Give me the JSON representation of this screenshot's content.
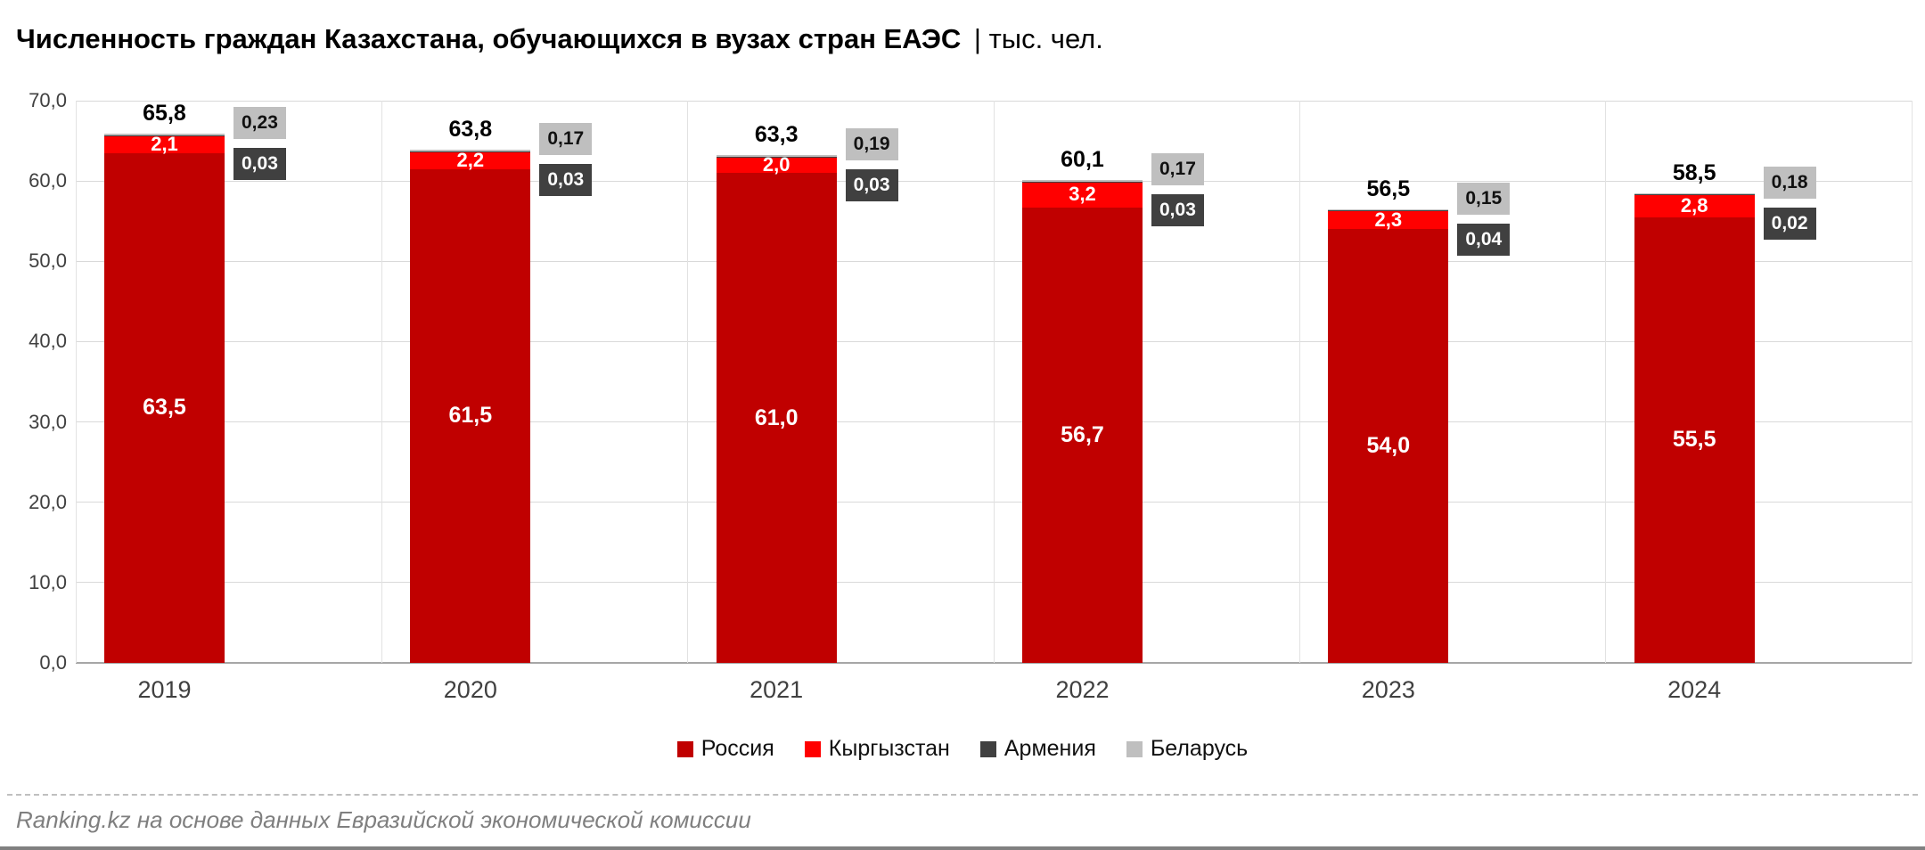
{
  "header": {
    "title": "Численность граждан Казахстана, обучающихся в вузах стран ЕАЭС",
    "title_suffix": "| тыс. чел."
  },
  "footer": {
    "credit": "Ranking.kz на основе данных Евразийской экономической комиссии"
  },
  "chart_data": {
    "type": "bar",
    "stacked": true,
    "title": "Численность граждан Казахстана, обучающихся в вузах стран ЕАЭС",
    "units": "тыс. чел.",
    "categories": [
      "2019",
      "2020",
      "2021",
      "2022",
      "2023",
      "2024"
    ],
    "series": [
      {
        "name": "Россия",
        "color": "#c00000",
        "values": [
          63.5,
          61.5,
          61.0,
          56.7,
          54.0,
          55.5
        ],
        "labels": [
          "63,5",
          "61,5",
          "61,0",
          "56,7",
          "54,0",
          "55,5"
        ]
      },
      {
        "name": "Кыргызстан",
        "color": "#ff0000",
        "values": [
          2.1,
          2.2,
          2.0,
          3.2,
          2.3,
          2.8
        ],
        "labels": [
          "2,1",
          "2,2",
          "2,0",
          "3,2",
          "2,3",
          "2,8"
        ]
      },
      {
        "name": "Армения",
        "color": "#404040",
        "values": [
          0.03,
          0.03,
          0.03,
          0.03,
          0.04,
          0.02
        ],
        "labels": [
          "0,03",
          "0,03",
          "0,03",
          "0,03",
          "0,04",
          "0,02"
        ]
      },
      {
        "name": "Беларусь",
        "color": "#bfbfbf",
        "values": [
          0.23,
          0.17,
          0.19,
          0.17,
          0.15,
          0.18
        ],
        "labels": [
          "0,23",
          "0,17",
          "0,19",
          "0,17",
          "0,15",
          "0,18"
        ]
      }
    ],
    "totals": [
      "65,8",
      "63,8",
      "63,3",
      "60,1",
      "56,5",
      "58,5"
    ],
    "ylim": [
      0,
      70
    ],
    "ytick_step": 10,
    "yticks": [
      "0,0",
      "10,0",
      "20,0",
      "30,0",
      "40,0",
      "50,0",
      "60,0",
      "70,0"
    ],
    "grid": true,
    "legend_position": "bottom",
    "callout_text_colors": {
      "Армения": "#ffffff",
      "Беларусь": "#111111"
    }
  }
}
